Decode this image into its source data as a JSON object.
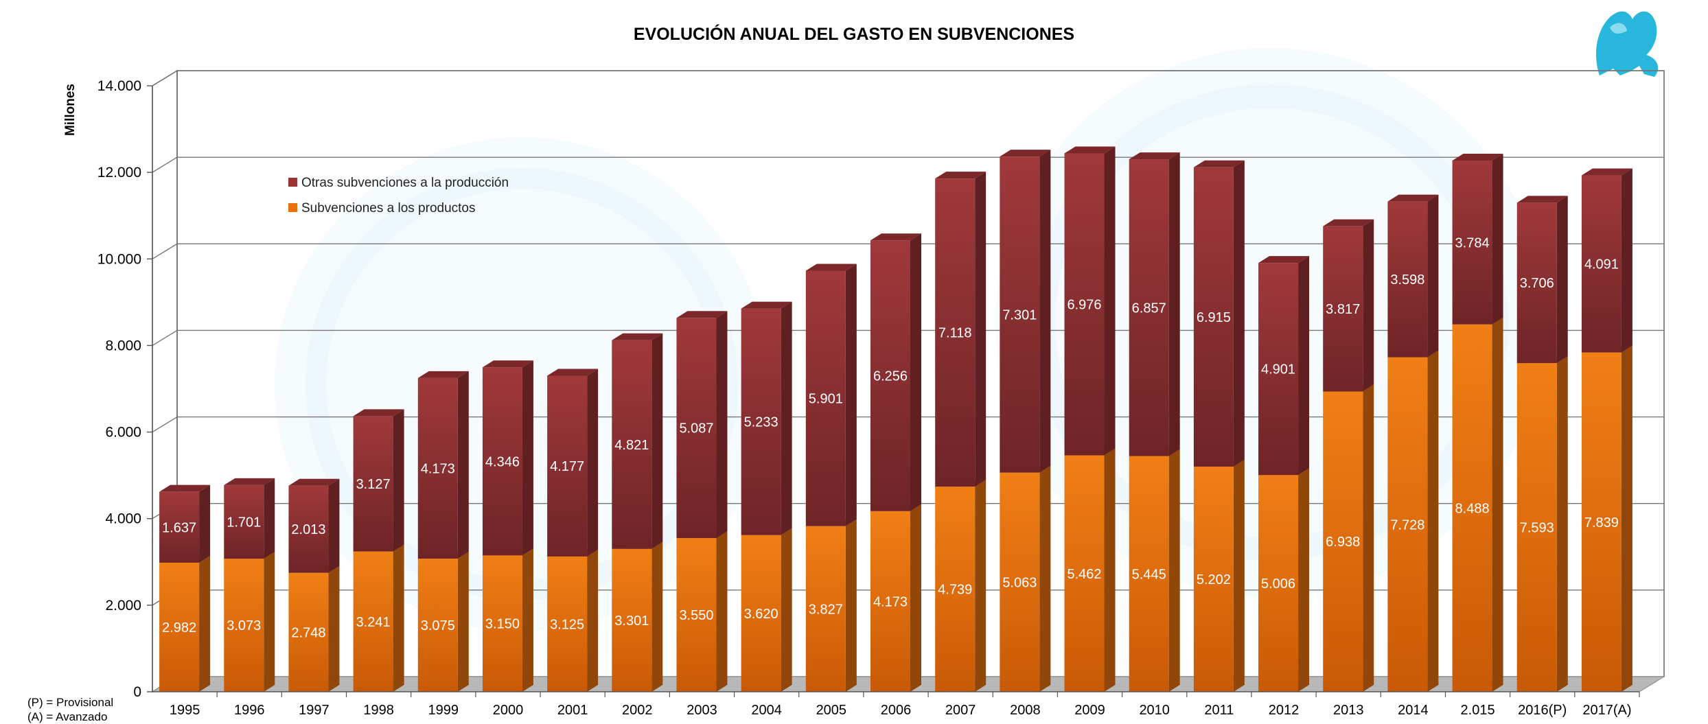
{
  "chart_data": {
    "type": "bar",
    "stacked": true,
    "title": "EVOLUCIÓN ANUAL DEL GASTO EN SUBVENCIONES",
    "ylabel": "Millones",
    "xlabel": "",
    "ylim": [
      0,
      14000
    ],
    "yticks": [
      "0",
      "2.000",
      "4.000",
      "6.000",
      "8.000",
      "10.000",
      "12.000",
      "14.000"
    ],
    "grid": true,
    "legend_position": "top-left",
    "categories": [
      "1995",
      "1996",
      "1997",
      "1998",
      "1999",
      "2000",
      "2001",
      "2002",
      "2003",
      "2004",
      "2005",
      "2006",
      "2007",
      "2008",
      "2009",
      "2010",
      "2011",
      "2012",
      "2013",
      "2014",
      "2.015",
      "2016(P)",
      "2017(A)"
    ],
    "series": [
      {
        "name": "Subvenciones a los productos",
        "color": "#e8730e",
        "values": [
          2982,
          3073,
          2748,
          3241,
          3075,
          3150,
          3125,
          3301,
          3550,
          3620,
          3827,
          4173,
          4739,
          5063,
          5462,
          5445,
          5202,
          5006,
          6938,
          7728,
          8488,
          7593,
          7839
        ],
        "labels": [
          "2.982",
          "3.073",
          "2.748",
          "3.241",
          "3.075",
          "3.150",
          "3.125",
          "3.301",
          "3.550",
          "3.620",
          "3.827",
          "4.173",
          "4.739",
          "5.063",
          "5.462",
          "5.445",
          "5.202",
          "5.006",
          "6.938",
          "7.728",
          "8.488",
          "7.593",
          "7.839"
        ]
      },
      {
        "name": "Otras subvenciones a la producción",
        "color": "#9b3234",
        "values": [
          1637,
          1701,
          2013,
          3127,
          4173,
          4346,
          4177,
          4821,
          5087,
          5233,
          5901,
          6256,
          7118,
          7301,
          6976,
          6857,
          6915,
          4901,
          3817,
          3598,
          3784,
          3706,
          4091
        ],
        "labels": [
          "1.637",
          "1.701",
          "2.013",
          "3.127",
          "4.173",
          "4.346",
          "4.177",
          "4.821",
          "5.087",
          "5.233",
          "5.901",
          "6.256",
          "7.118",
          "7.301",
          "6.976",
          "6.857",
          "6.915",
          "4.901",
          "3.817",
          "3.598",
          "3.784",
          "3.706",
          "4.091"
        ]
      }
    ],
    "legend": [
      "Otras subvenciones a la producción",
      "Subvenciones a los productos"
    ],
    "notes": [
      "(P) = Provisional",
      "(A) = Avanzado"
    ]
  }
}
